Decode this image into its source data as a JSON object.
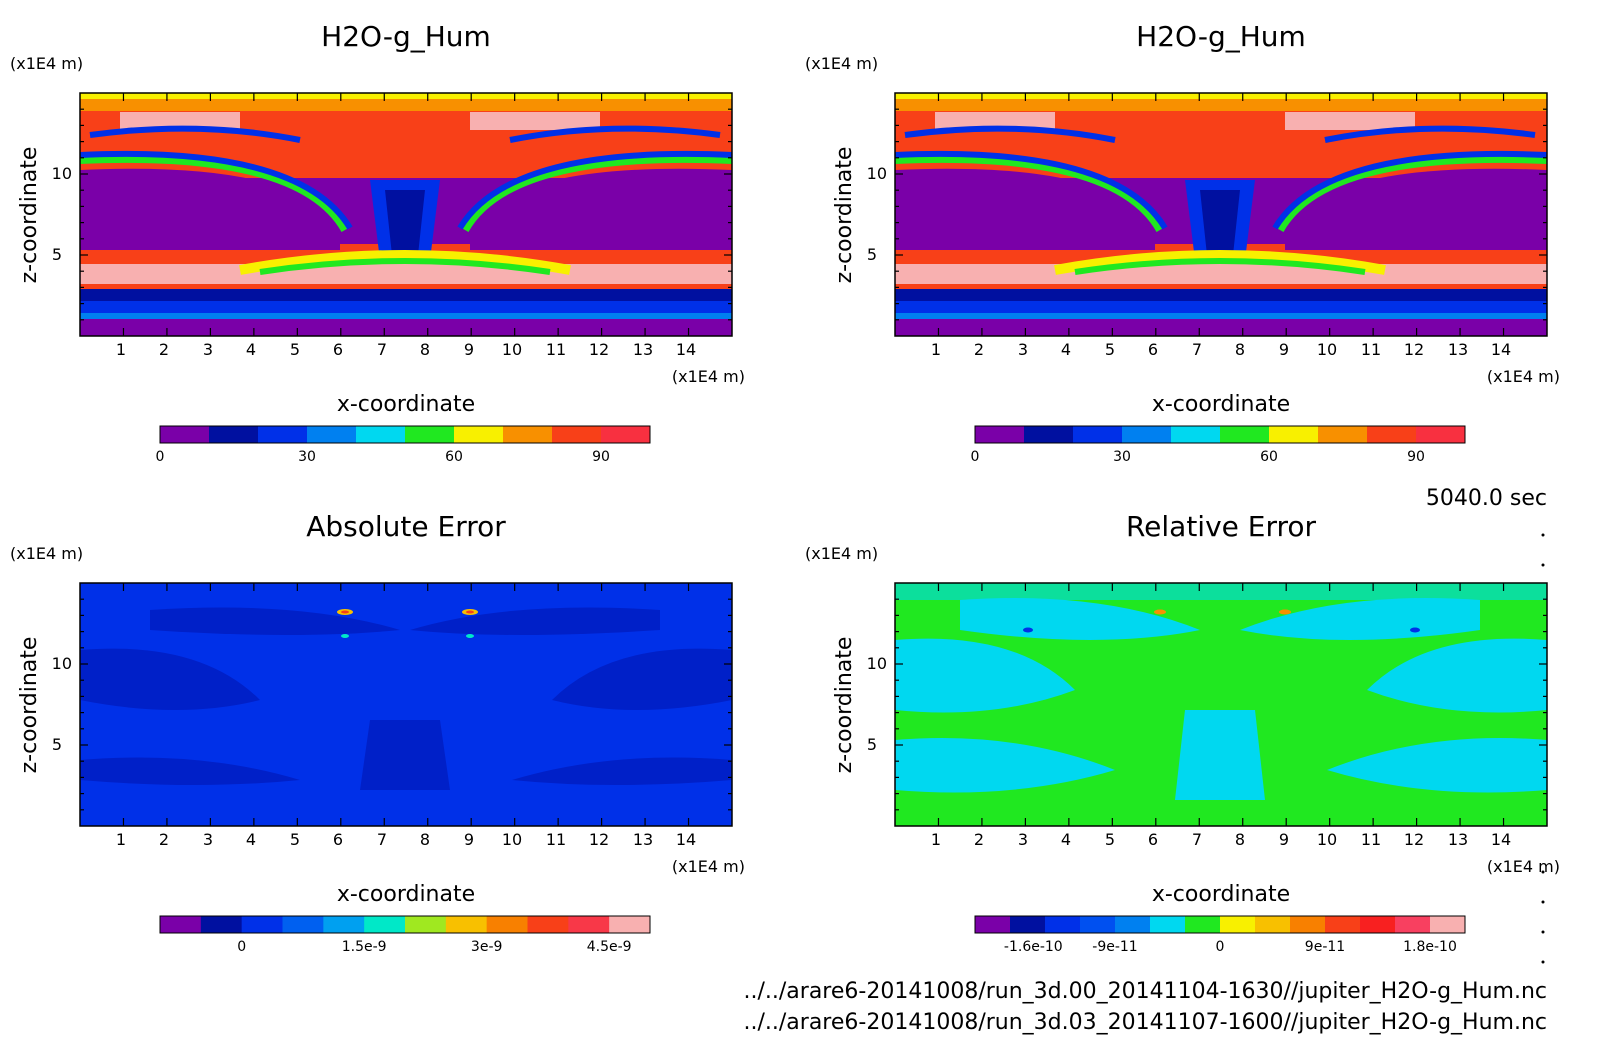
{
  "time_label": "5040.0 sec",
  "files": [
    "../../arare6-20141008/run_3d.00_20141104-1630//jupiter_H2O-g_Hum.nc",
    "../../arare6-20141008/run_3d.03_20141107-1600//jupiter_H2O-g_Hum.nc"
  ],
  "chart_data": [
    {
      "type": "heatmap",
      "title": "H2O-g_Hum",
      "xlabel": "x-coordinate",
      "ylabel": "z-coordinate",
      "xunit": "(x1E4 m)",
      "yunit": "(x1E4 m)",
      "xticks": [
        "1",
        "2",
        "3",
        "4",
        "5",
        "6",
        "7",
        "8",
        "9",
        "10",
        "11",
        "12",
        "13",
        "14"
      ],
      "yticks": [
        "5",
        "10"
      ],
      "xlim": [
        0,
        15
      ],
      "ylim": [
        0,
        15
      ],
      "colorbar": {
        "levels": [
          0,
          10,
          20,
          30,
          40,
          50,
          60,
          70,
          80,
          90,
          100
        ],
        "colors": [
          "#7a00a8",
          "#0010a0",
          "#0030e8",
          "#0080f0",
          "#00d8f0",
          "#20e820",
          "#f8f000",
          "#f89000",
          "#f84018",
          "#f83040"
        ],
        "ticks": [
          "0",
          "30",
          "60",
          "90"
        ],
        "tick_values": [
          0,
          30,
          60,
          90
        ]
      }
    },
    {
      "type": "heatmap",
      "title": "H2O-g_Hum",
      "xlabel": "x-coordinate",
      "ylabel": "z-coordinate",
      "xunit": "(x1E4 m)",
      "yunit": "(x1E4 m)",
      "xticks": [
        "1",
        "2",
        "3",
        "4",
        "5",
        "6",
        "7",
        "8",
        "9",
        "10",
        "11",
        "12",
        "13",
        "14"
      ],
      "yticks": [
        "5",
        "10"
      ],
      "xlim": [
        0,
        15
      ],
      "ylim": [
        0,
        15
      ],
      "colorbar": {
        "levels": [
          0,
          10,
          20,
          30,
          40,
          50,
          60,
          70,
          80,
          90,
          100
        ],
        "colors": [
          "#7a00a8",
          "#0010a0",
          "#0030e8",
          "#0080f0",
          "#00d8f0",
          "#20e820",
          "#f8f000",
          "#f89000",
          "#f84018",
          "#f83040"
        ],
        "ticks": [
          "0",
          "30",
          "60",
          "90"
        ],
        "tick_values": [
          0,
          30,
          60,
          90
        ]
      }
    },
    {
      "type": "heatmap",
      "title": "Absolute Error",
      "xlabel": "x-coordinate",
      "ylabel": "z-coordinate",
      "xunit": "(x1E4 m)",
      "yunit": "(x1E4 m)",
      "xticks": [
        "1",
        "2",
        "3",
        "4",
        "5",
        "6",
        "7",
        "8",
        "9",
        "10",
        "11",
        "12",
        "13",
        "14"
      ],
      "yticks": [
        "5",
        "10"
      ],
      "xlim": [
        0,
        15
      ],
      "ylim": [
        0,
        15
      ],
      "colorbar": {
        "levels": [
          -1e-09,
          -5e-10,
          0,
          5e-10,
          1e-09,
          1.5e-09,
          2e-09,
          2.5e-09,
          3e-09,
          3.5e-09,
          4e-09,
          4.5e-09,
          5e-09
        ],
        "colors": [
          "#7a00a8",
          "#0010a0",
          "#0030e8",
          "#0060f0",
          "#00a0f0",
          "#00e8c8",
          "#a0e820",
          "#f8c000",
          "#f88000",
          "#f84018",
          "#f83848",
          "#f8b0b0"
        ],
        "ticks": [
          "0",
          "1.5e-9",
          "3e-9",
          "4.5e-9"
        ],
        "tick_values": [
          0,
          1.5e-09,
          3e-09,
          4.5e-09
        ]
      }
    },
    {
      "type": "heatmap",
      "title": "Relative Error",
      "xlabel": "x-coordinate",
      "ylabel": "z-coordinate",
      "xunit": "(x1E4 m)",
      "yunit": "(x1E4 m)",
      "xticks": [
        "1",
        "2",
        "3",
        "4",
        "5",
        "6",
        "7",
        "8",
        "9",
        "10",
        "11",
        "12",
        "13",
        "14"
      ],
      "yticks": [
        "5",
        "10"
      ],
      "xlim": [
        0,
        15
      ],
      "ylim": [
        0,
        15
      ],
      "colorbar": {
        "levels": [
          -2.1e-10,
          -1.8e-10,
          -1.5e-10,
          -1.2e-10,
          -9e-11,
          -6e-11,
          -3e-11,
          0,
          3e-11,
          6e-11,
          9e-11,
          1.2e-10,
          1.5e-10,
          1.8e-10,
          2.1e-10
        ],
        "colors": [
          "#7a00a8",
          "#0010a0",
          "#0030e8",
          "#0050f0",
          "#0080f0",
          "#00d8f0",
          "#20e820",
          "#f8f000",
          "#f8c000",
          "#f88000",
          "#f84018",
          "#f82020",
          "#f84060",
          "#f8b0b0"
        ],
        "ticks": [
          "-1.6e-10",
          "-9e-11",
          "0",
          "9e-11",
          "1.8e-10"
        ],
        "tick_values": [
          -1.6e-10,
          -9e-11,
          0,
          9e-11,
          1.8e-10
        ]
      }
    }
  ]
}
